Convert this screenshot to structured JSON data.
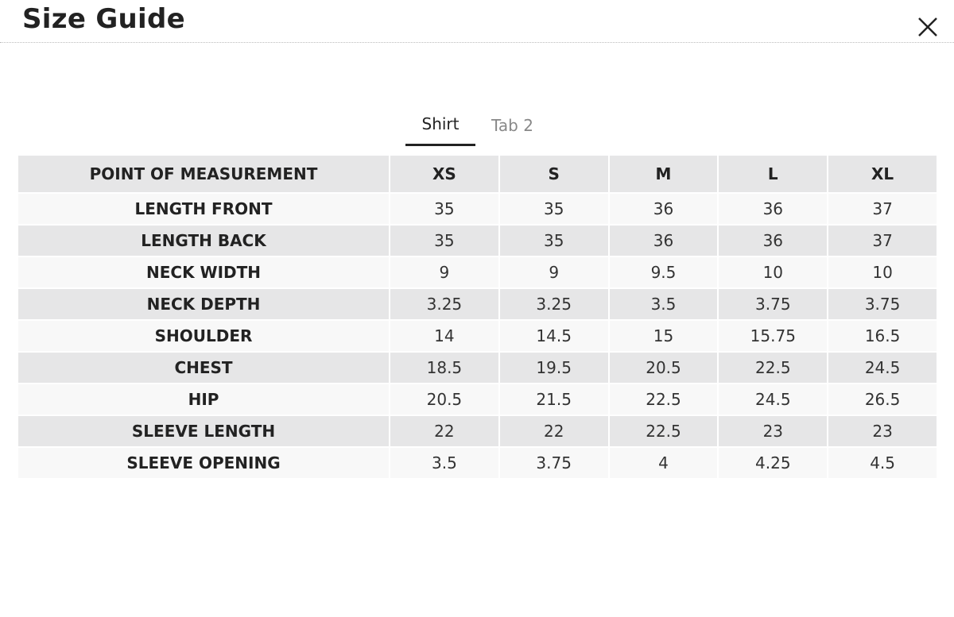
{
  "header": {
    "title": "Size Guide"
  },
  "tabs": [
    "Shirt",
    "Tab 2"
  ],
  "table": {
    "columns": [
      "POINT OF MEASUREMENT",
      "XS",
      "S",
      "M",
      "L",
      "XL"
    ],
    "rows": [
      [
        "LENGTH FRONT",
        35,
        35,
        36,
        36,
        37
      ],
      [
        "LENGTH BACK",
        35,
        35,
        36,
        36,
        37
      ],
      [
        "NECK WIDTH",
        9,
        9,
        9.5,
        10,
        10
      ],
      [
        "NECK DEPTH",
        3.25,
        3.25,
        3.5,
        3.75,
        3.75
      ],
      [
        "SHOULDER",
        14,
        14.5,
        15,
        15.75,
        16.5
      ],
      [
        "CHEST",
        18.5,
        19.5,
        20.5,
        22.5,
        24.5
      ],
      [
        "HIP",
        20.5,
        21.5,
        22.5,
        24.5,
        26.5
      ],
      [
        "SLEEVE LENGTH",
        22,
        22,
        22.5,
        23,
        23
      ],
      [
        "SLEEVE OPENING",
        3.5,
        3.75,
        4,
        4.25,
        4.5
      ]
    ]
  }
}
